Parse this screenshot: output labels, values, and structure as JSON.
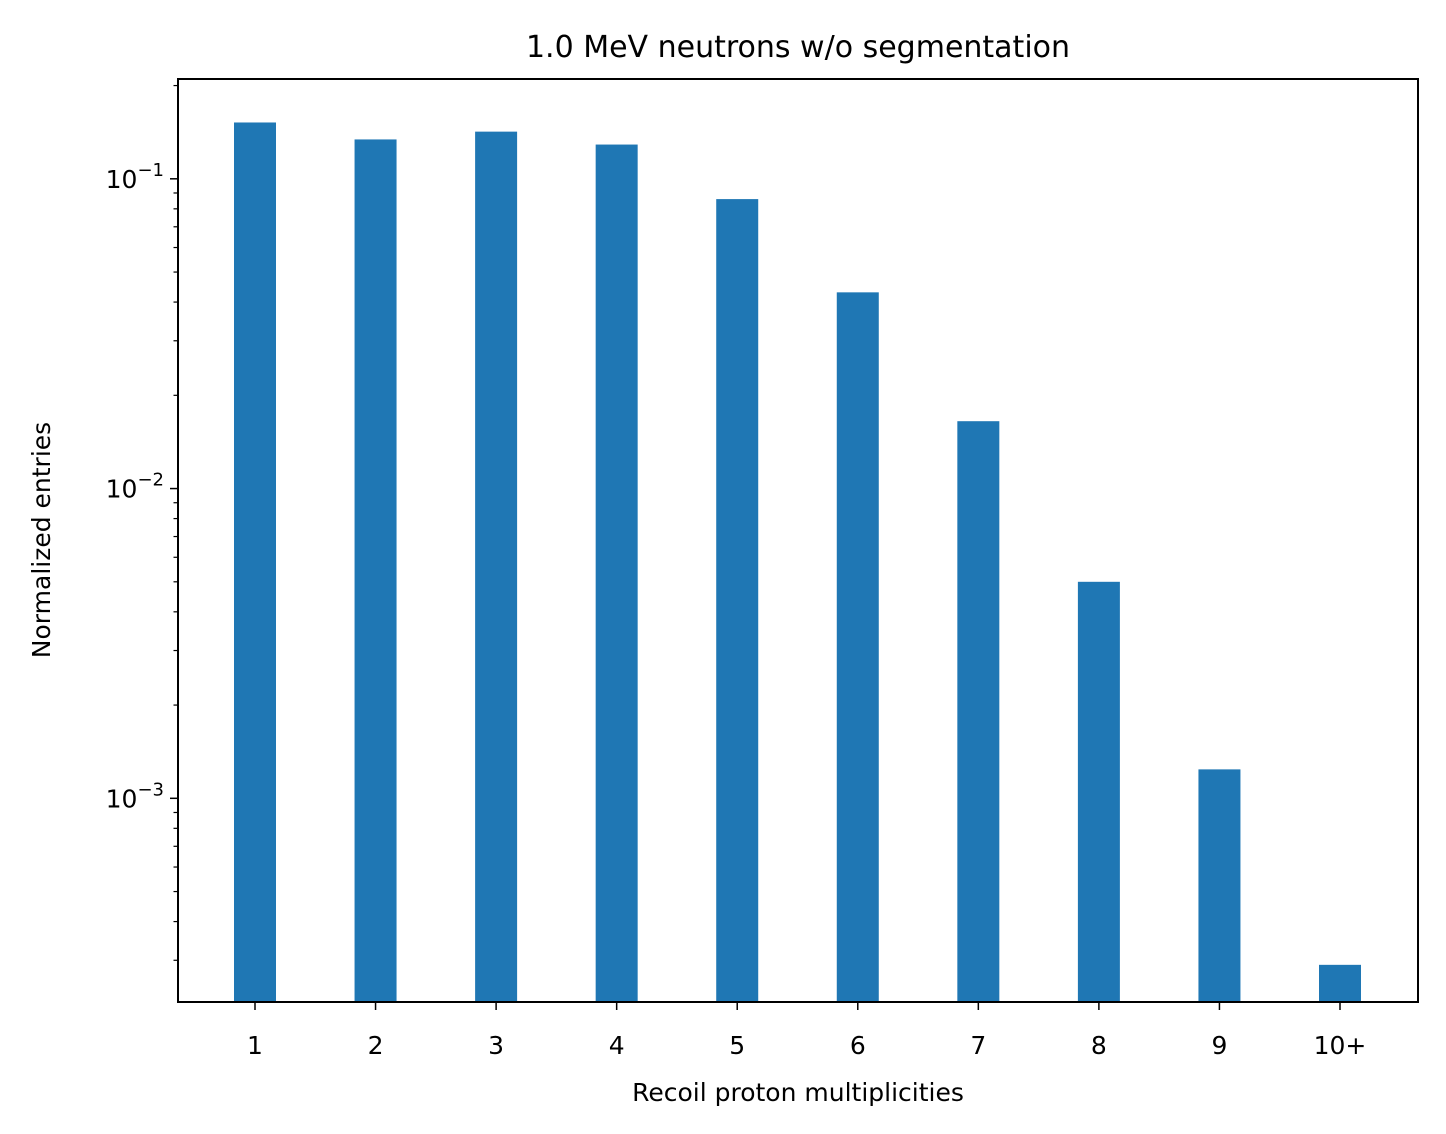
{
  "chart_data": {
    "type": "bar",
    "title": "1.0 MeV neutrons w/o segmentation",
    "xlabel": "Recoil proton multiplicities",
    "ylabel": "Normalized entries",
    "categories": [
      "1",
      "2",
      "3",
      "4",
      "5",
      "6",
      "7",
      "8",
      "9",
      "10+"
    ],
    "values": [
      0.152,
      0.134,
      0.142,
      0.129,
      0.086,
      0.043,
      0.0165,
      0.005,
      0.00124,
      0.00029
    ],
    "yscale": "log",
    "ylim": [
      0.00022,
      0.21
    ],
    "yticks": [
      {
        "value": 0.1,
        "base": "10",
        "exp": "−1"
      },
      {
        "value": 0.01,
        "base": "10",
        "exp": "−2"
      },
      {
        "value": 0.001,
        "base": "10",
        "exp": "−3"
      }
    ],
    "grid": false,
    "legend": "none",
    "bar_color": "#1f77b4"
  }
}
